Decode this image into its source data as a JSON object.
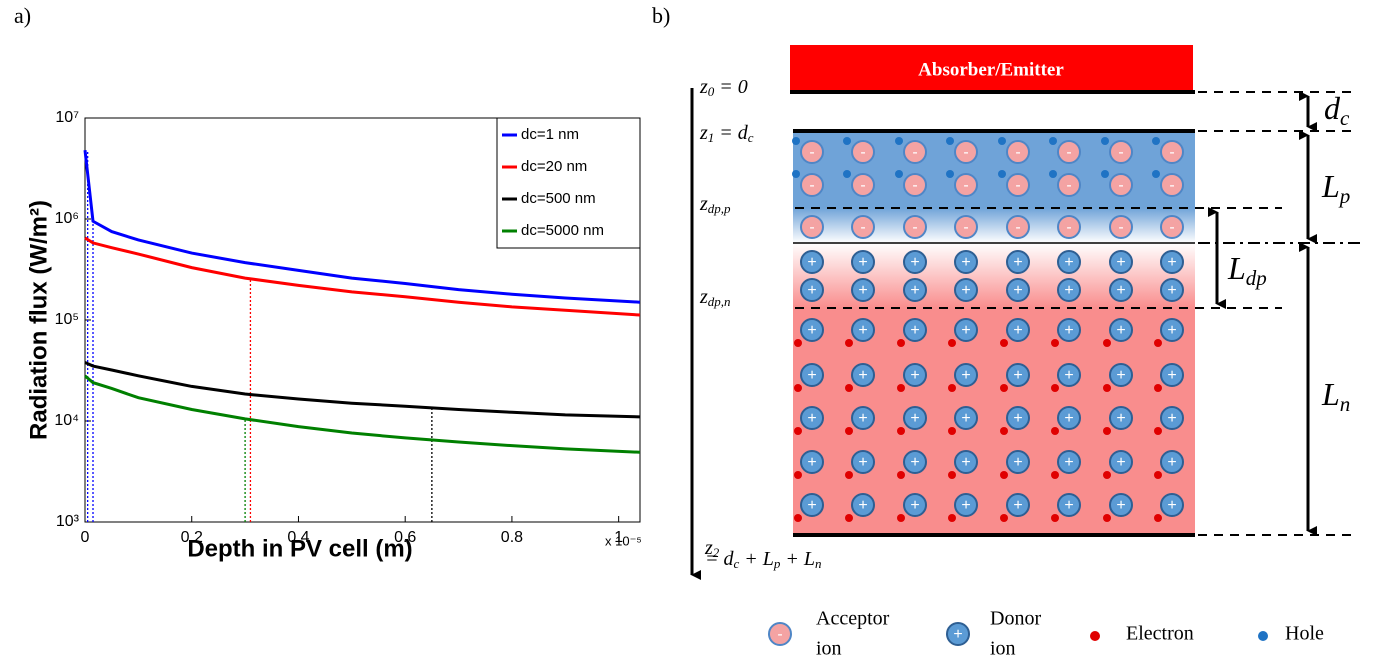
{
  "chart_data": {
    "type": "line",
    "panel_label": "a)",
    "x_label": "Depth in PV cell (m)",
    "y_label": "Radiation flux (W/m²)",
    "x_multiplier": "x 10⁻⁵",
    "xlim": [
      0,
      1.04
    ],
    "xticks": [
      0,
      0.2,
      0.4,
      0.6,
      0.8,
      1
    ],
    "ylim": [
      1000,
      10000000
    ],
    "log_y": true,
    "yticks": [
      {
        "value": 1000,
        "label": "10³"
      },
      {
        "value": 10000,
        "label": "10⁴"
      },
      {
        "value": 100000,
        "label": "10⁵"
      },
      {
        "value": 1000000,
        "label": "10⁶"
      },
      {
        "value": 10000000,
        "label": "10⁷"
      }
    ],
    "legend": "upper right",
    "x": [
      0,
      0.015,
      0.05,
      0.1,
      0.2,
      0.3,
      0.4,
      0.5,
      0.6,
      0.7,
      0.8,
      0.9,
      1.04
    ],
    "series": [
      {
        "name": "dc=1 nm",
        "color": "#0000ff",
        "values": [
          4800000,
          950000,
          750000,
          620000,
          460000,
          370000,
          310000,
          260000,
          230000,
          200000,
          180000,
          165000,
          150000
        ]
      },
      {
        "name": "dc=20 nm",
        "color": "#ff0000",
        "values": [
          650000,
          580000,
          520000,
          450000,
          330000,
          260000,
          220000,
          190000,
          170000,
          150000,
          135000,
          125000,
          112000
        ]
      },
      {
        "name": "dc=500 nm",
        "color": "#000000",
        "values": [
          38000,
          35000,
          32000,
          28000,
          22000,
          18500,
          16500,
          15000,
          14000,
          13000,
          12200,
          11500,
          11000
        ]
      },
      {
        "name": "dc=5000 nm",
        "color": "#008000",
        "values": [
          28000,
          24000,
          21000,
          17000,
          13000,
          10500,
          8800,
          7600,
          6800,
          6200,
          5700,
          5300,
          4900
        ]
      }
    ],
    "markers": [
      {
        "x": 0.005,
        "y": 4800000,
        "color": "#0000ff"
      },
      {
        "x": 0.015,
        "y": 950000,
        "color": "#0000ff"
      },
      {
        "x": 0.31,
        "y": 250000,
        "color": "#ff0000"
      },
      {
        "x": 0.65,
        "y": 14000,
        "color": "#000000"
      },
      {
        "x": 0.3,
        "y": 10500,
        "color": "#008000"
      }
    ]
  },
  "diagram": {
    "panel_label": "b)",
    "absorber": "Absorber/Emitter",
    "z0": {
      "base": "z",
      "sub": "0",
      "tail": " = 0"
    },
    "z1": {
      "base": "z",
      "sub": "1",
      "tail": " = d",
      "tail_sub": "c"
    },
    "zdpp": {
      "base": "z",
      "sub": "dp,p"
    },
    "zdpn": {
      "base": "z",
      "sub": "dp,n"
    },
    "z2": {
      "base": "z",
      "sub": "2",
      "eq": "= d",
      "s1": "c",
      "p1": " + L",
      "s2": "p",
      "p2": " + L",
      "s3": "n"
    },
    "dc": {
      "base": "d",
      "sub": "c"
    },
    "lp": {
      "base": "L",
      "sub": "p"
    },
    "ldp": {
      "base": "L",
      "sub": "dp"
    },
    "ln": {
      "base": "L",
      "sub": "n"
    },
    "acceptor_sign": "-",
    "donor_sign": "+",
    "legend": {
      "acceptor": [
        "Acceptor",
        "ion"
      ],
      "donor": [
        "Donor",
        "ion"
      ],
      "electron": "Electron",
      "hole": "Hole"
    }
  }
}
